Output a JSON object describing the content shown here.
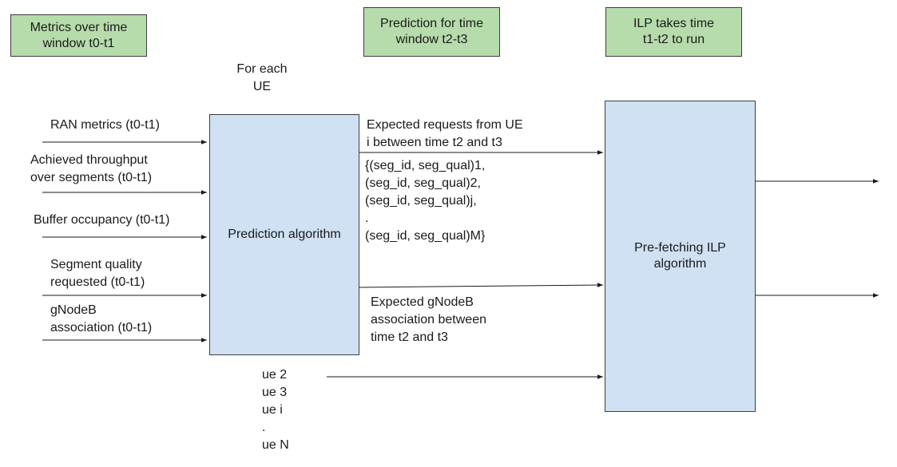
{
  "header_boxes": {
    "metrics_window": "Metrics over time\nwindow t0-t1",
    "prediction_window": "Prediction for time\nwindow t2-t3",
    "ilp_time": "ILP takes time\nt1-t2 to run"
  },
  "for_each_ue": "For each\nUE",
  "inputs": [
    "RAN metrics (t0-t1)",
    "Achieved throughput\nover segments (t0-t1)",
    "Buffer occupancy (t0-t1)",
    "Segment quality\nrequested (t0-t1)",
    "gNodeB\nassociation (t0-t1)"
  ],
  "prediction_algorithm": "Prediction algorithm",
  "expected_requests": {
    "title": "Expected requests from UE\ni between time t2 and t3",
    "list": "{(seg_id, seg_qual)1,\n(seg_id, seg_qual)2,\n(seg_id, seg_qual)j,\n.\n(seg_id, seg_qual)M}"
  },
  "expected_gnodeb": "Expected gNodeB\nassociation between\ntime t2 and t3",
  "ue_list": "ue 2\nue 3\nue i\n.\nue N",
  "ilp_algorithm": "Pre-fetching ILP\nalgorithm",
  "colors": {
    "green_box": "#b7dcac",
    "blue_box": "#cfe1f3",
    "line": "#1a1a1a"
  }
}
